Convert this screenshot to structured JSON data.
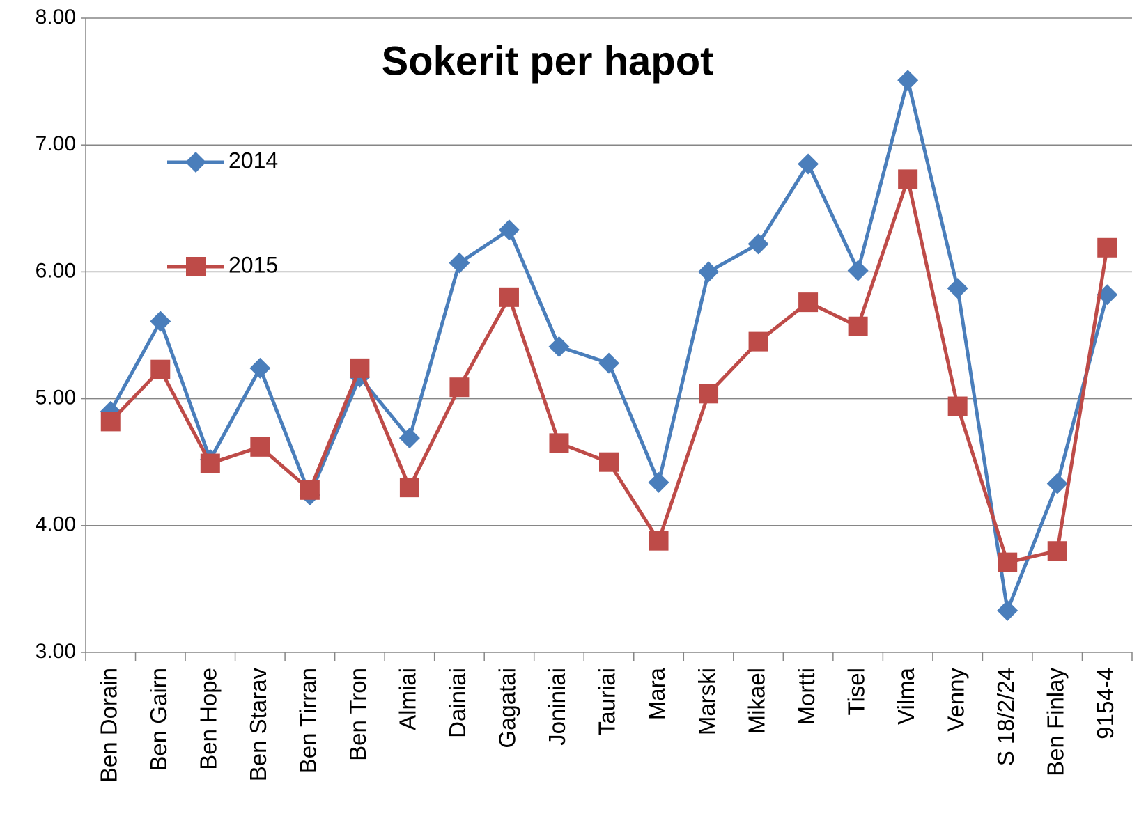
{
  "chart_data": {
    "type": "line",
    "title": "Sokerit per hapot",
    "categories": [
      "Ben Dorain",
      "Ben Gairn",
      "Ben Hope",
      "Ben Starav",
      "Ben Tirran",
      "Ben Tron",
      "Almiai",
      "Dainiai",
      "Gagatai",
      "Joniniai",
      "Tauriai",
      "Mara",
      "Marski",
      "Mikael",
      "Mortti",
      "Tisel",
      "Vilma",
      "Venny",
      "S 18/2/24",
      "Ben Finlay",
      "9154-4"
    ],
    "series": [
      {
        "name": "2014",
        "color": "#4a7ebb",
        "marker": "diamond",
        "values": [
          4.9,
          5.61,
          4.52,
          5.24,
          4.24,
          5.17,
          4.69,
          6.07,
          6.33,
          5.41,
          5.28,
          4.34,
          6.0,
          6.22,
          6.85,
          6.01,
          7.51,
          5.87,
          3.33,
          4.33,
          5.82
        ]
      },
      {
        "name": "2015",
        "color": "#be4b48",
        "marker": "square",
        "values": [
          4.82,
          5.23,
          4.49,
          4.62,
          4.28,
          5.24,
          4.3,
          5.09,
          5.8,
          4.65,
          4.5,
          3.88,
          5.04,
          5.45,
          5.76,
          5.57,
          6.73,
          4.94,
          3.71,
          3.8,
          6.19
        ]
      }
    ],
    "ylim": [
      3,
      8
    ],
    "yticks": [
      {
        "value": 3,
        "label": "3.00"
      },
      {
        "value": 4,
        "label": "4.00"
      },
      {
        "value": 5,
        "label": "5.00"
      },
      {
        "value": 6,
        "label": "6.00"
      },
      {
        "value": 7,
        "label": "7.00"
      },
      {
        "value": 8,
        "label": "8.00"
      }
    ],
    "grid": true
  }
}
